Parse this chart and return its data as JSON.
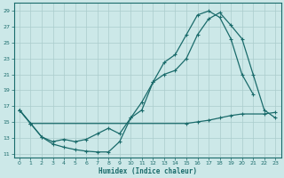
{
  "xlabel": "Humidex (Indice chaleur)",
  "background_color": "#cce8e8",
  "grid_color": "#aacccc",
  "line_color": "#1a6b6b",
  "xlim": [
    -0.5,
    23.5
  ],
  "ylim": [
    10.5,
    30.0
  ],
  "xticks": [
    0,
    1,
    2,
    3,
    4,
    5,
    6,
    7,
    8,
    9,
    10,
    11,
    12,
    13,
    14,
    15,
    16,
    17,
    18,
    19,
    20,
    21,
    22,
    23
  ],
  "yticks": [
    11,
    13,
    15,
    17,
    19,
    21,
    23,
    25,
    27,
    29
  ],
  "line1_x": [
    0,
    1,
    2,
    3,
    4,
    5,
    6,
    7,
    8,
    9,
    10,
    11,
    12,
    13,
    14,
    15,
    16,
    17,
    18,
    19,
    20,
    21
  ],
  "line1_y": [
    16.5,
    14.8,
    13.1,
    12.2,
    11.8,
    11.5,
    11.3,
    11.2,
    11.2,
    12.5,
    15.5,
    16.5,
    20.0,
    22.5,
    23.5,
    26.0,
    28.5,
    29.0,
    28.2,
    25.5,
    21.0,
    18.5
  ],
  "line2_x": [
    0,
    1,
    2,
    3,
    4,
    5,
    6,
    7,
    8,
    9,
    10,
    11,
    12,
    13,
    14,
    15,
    16,
    17,
    18,
    19,
    20,
    21,
    22,
    23
  ],
  "line2_y": [
    16.5,
    14.8,
    13.1,
    12.5,
    12.8,
    12.5,
    12.8,
    13.5,
    14.2,
    13.5,
    15.5,
    17.5,
    20.0,
    21.0,
    21.5,
    23.0,
    26.0,
    28.0,
    28.8,
    27.2,
    25.5,
    21.0,
    16.5,
    15.5
  ],
  "line3_x": [
    0,
    1,
    2,
    3,
    4,
    5,
    6,
    7,
    8,
    9,
    10,
    11,
    12,
    13,
    14,
    15,
    16,
    17,
    18,
    19,
    20,
    21,
    22,
    23
  ],
  "line3_y": [
    16.5,
    14.8,
    null,
    null,
    null,
    null,
    null,
    null,
    null,
    null,
    null,
    null,
    null,
    null,
    null,
    14.8,
    15.0,
    15.2,
    15.5,
    15.8,
    16.0,
    null,
    16.0,
    16.2
  ]
}
